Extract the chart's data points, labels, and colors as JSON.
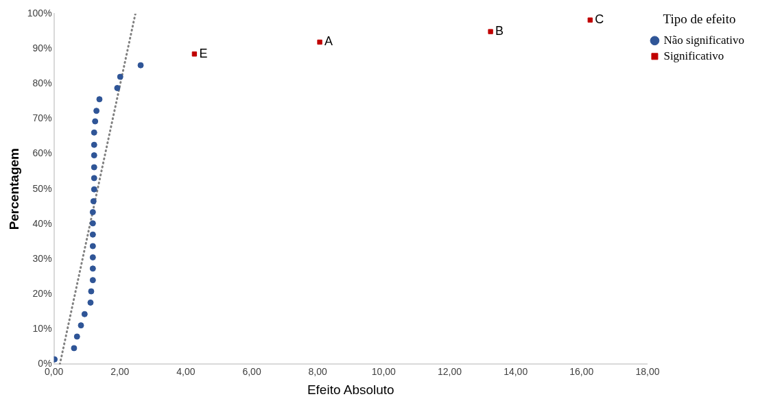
{
  "chart_data": {
    "type": "scatter",
    "xlabel": "Efeito Absoluto",
    "ylabel": "Percentagem",
    "legend_title": "Tipo de efeito",
    "legend": "top right",
    "grid": false,
    "xlim": [
      0,
      18
    ],
    "xticks": [
      {
        "value": 0,
        "label": "0,00"
      },
      {
        "value": 2,
        "label": "2,00"
      },
      {
        "value": 4,
        "label": "4,00"
      },
      {
        "value": 6,
        "label": "6,00"
      },
      {
        "value": 8,
        "label": "8,00"
      },
      {
        "value": 10,
        "label": "10,00"
      },
      {
        "value": 12,
        "label": "12,00"
      },
      {
        "value": 14,
        "label": "14,00"
      },
      {
        "value": 16,
        "label": "16,00"
      },
      {
        "value": 18,
        "label": "18,00"
      }
    ],
    "ylim": [
      0,
      100
    ],
    "yticks": [
      {
        "value": 0,
        "label": "0%"
      },
      {
        "value": 10,
        "label": "10%"
      },
      {
        "value": 20,
        "label": "20%"
      },
      {
        "value": 30,
        "label": "30%"
      },
      {
        "value": 40,
        "label": "40%"
      },
      {
        "value": 50,
        "label": "50%"
      },
      {
        "value": 60,
        "label": "60%"
      },
      {
        "value": 70,
        "label": "70%"
      },
      {
        "value": 80,
        "label": "80%"
      },
      {
        "value": 90,
        "label": "90%"
      },
      {
        "value": 100,
        "label": "100%"
      }
    ],
    "series": [
      {
        "name": "Não significativo",
        "color": "#2f5597",
        "marker": "circle",
        "x": [
          0.02,
          0.61,
          0.7,
          0.82,
          0.93,
          1.11,
          1.13,
          1.18,
          1.18,
          1.18,
          1.18,
          1.18,
          1.18,
          1.18,
          1.2,
          1.22,
          1.22,
          1.22,
          1.22,
          1.22,
          1.22,
          1.25,
          1.29,
          1.38,
          1.92,
          2.01,
          2.63
        ],
        "values": [
          1.4,
          4.6,
          7.9,
          11.1,
          14.3,
          17.6,
          20.8,
          24,
          27.3,
          30.5,
          33.7,
          37,
          40.2,
          43.4,
          46.5,
          49.9,
          53.1,
          56.2,
          59.6,
          62.6,
          66.1,
          69.3,
          72.3,
          75.6,
          78.8,
          82,
          85.3
        ]
      },
      {
        "name": "Significativo",
        "color": "#c00000",
        "marker": "square",
        "x": [
          4.26,
          8.06,
          13.24,
          16.26
        ],
        "values": [
          88.5,
          91.9,
          94.9,
          98.2
        ]
      },
      {
        "type": "line",
        "color": "#808080",
        "marker": "none",
        "line_style": "dotted",
        "x": [
          0.18,
          2.47
        ],
        "values": [
          0,
          100
        ]
      }
    ],
    "annotations": [
      {
        "text": "E",
        "x": 4.26,
        "y": 88.5
      },
      {
        "text": "A",
        "x": 8.06,
        "y": 91.9
      },
      {
        "text": "B",
        "x": 13.24,
        "y": 94.9
      },
      {
        "text": "C",
        "x": 16.26,
        "y": 98.2
      }
    ]
  }
}
